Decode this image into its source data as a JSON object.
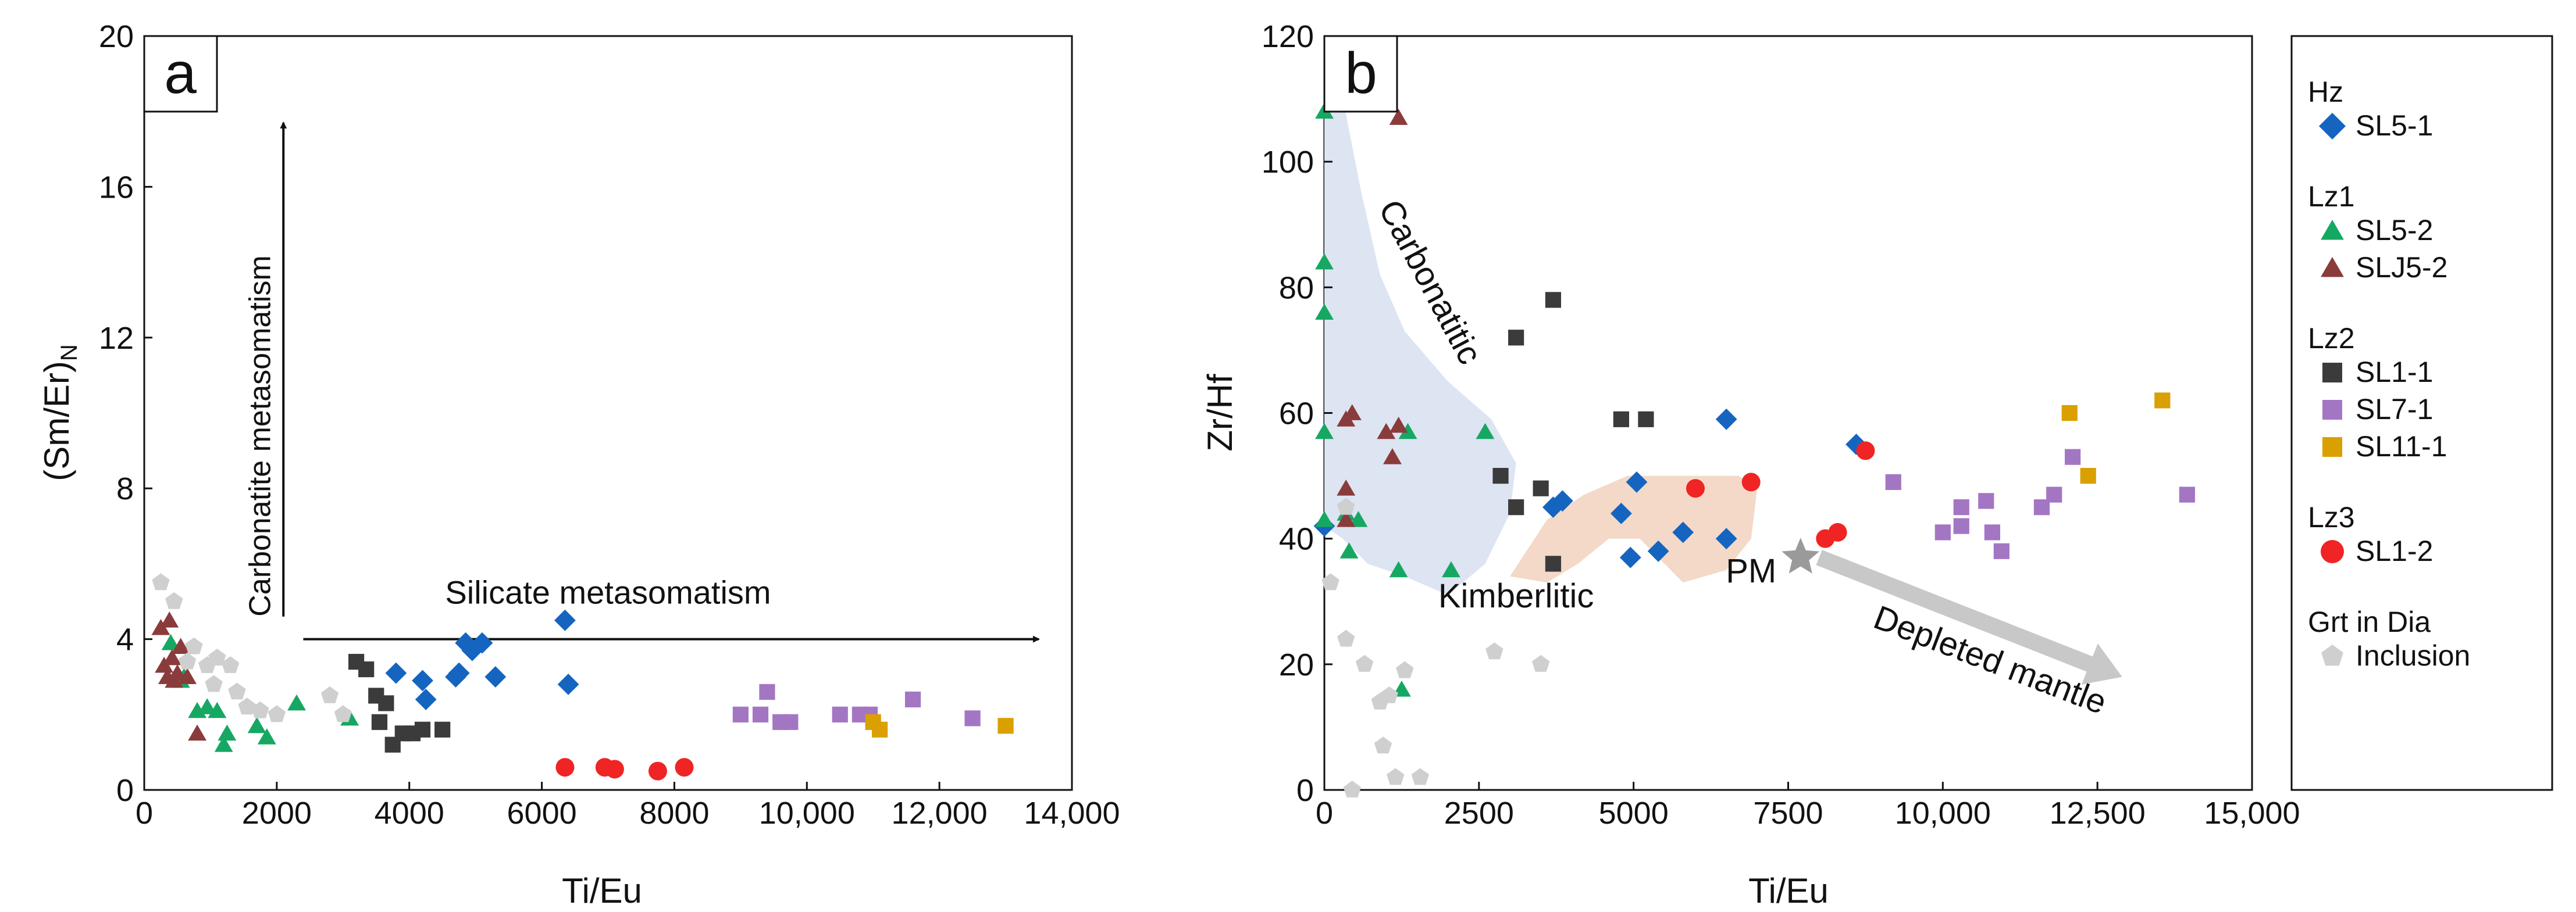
{
  "colors": {
    "SL5-1": "#1565c0",
    "SL5-2": "#16a862",
    "SLJ5-2": "#8a3b3b",
    "SL1-1": "#3b3b3b",
    "SL7-1": "#a376c4",
    "SL11-1": "#d9a000",
    "SL1-2": "#f02424",
    "Inclusion": "#cfcfcf",
    "carbonatitic_field": "#dde4f2",
    "kimberlitic_field": "#f4d9c8",
    "depleted_arrow": "#c8c8c8",
    "pm_star": "#9a9a9a"
  },
  "legend": {
    "groups": [
      {
        "label": "Hz",
        "entries": [
          {
            "label": "SL5-1",
            "marker": "diamond"
          }
        ]
      },
      {
        "label": "Lz1",
        "entries": [
          {
            "label": "SL5-2",
            "marker": "triangle"
          },
          {
            "label": "SLJ5-2",
            "marker": "triangle"
          }
        ]
      },
      {
        "label": "Lz2",
        "entries": [
          {
            "label": "SL1-1",
            "marker": "square"
          },
          {
            "label": "SL7-1",
            "marker": "square"
          },
          {
            "label": "SL11-1",
            "marker": "square"
          }
        ]
      },
      {
        "label": "Lz3",
        "entries": [
          {
            "label": "SL1-2",
            "marker": "circle"
          }
        ]
      },
      {
        "label": "Grt in Dia",
        "entries": [
          {
            "label": "Inclusion",
            "marker": "pentagon"
          }
        ]
      }
    ]
  },
  "chart_data": [
    {
      "panel": "a",
      "type": "scatter",
      "xlabel": "Ti/Eu",
      "ylabel": "(Sm/Er)",
      "ylabel_sub": "N",
      "xlim": [
        0,
        14000
      ],
      "ylim": [
        0,
        20
      ],
      "x_ticks": [
        {
          "v": 0,
          "label": "0"
        },
        {
          "v": 2000,
          "label": "2000"
        },
        {
          "v": 4000,
          "label": "4000"
        },
        {
          "v": 6000,
          "label": "6000"
        },
        {
          "v": 8000,
          "label": "8000"
        },
        {
          "v": 10000,
          "label": "10,000"
        },
        {
          "v": 12000,
          "label": "12,000"
        },
        {
          "v": 14000,
          "label": "14,000"
        }
      ],
      "y_ticks": [
        {
          "v": 0,
          "label": "0"
        },
        {
          "v": 4,
          "label": "4"
        },
        {
          "v": 8,
          "label": "8"
        },
        {
          "v": 12,
          "label": "12"
        },
        {
          "v": 16,
          "label": "16"
        },
        {
          "v": 20,
          "label": "20"
        }
      ],
      "annotations": [
        {
          "id": "carb",
          "text": "Carbonatite metasomatism",
          "x": 1900,
          "y": 4.6,
          "rotate": -90
        },
        {
          "id": "sil",
          "text": "Silicate metasomatism",
          "x": 7000,
          "y": 4.6
        }
      ],
      "arrows": [
        {
          "id": "carb-arrow",
          "from": [
            2100,
            4.6
          ],
          "to": [
            2100,
            17.7
          ]
        },
        {
          "id": "sil-arrow",
          "from": [
            2400,
            4.0
          ],
          "to": [
            13500,
            4.0
          ]
        }
      ],
      "series": [
        {
          "name": "SL5-1",
          "marker": "diamond",
          "points": [
            [
              3800,
              3.1
            ],
            [
              4200,
              2.9
            ],
            [
              4250,
              2.4
            ],
            [
              4700,
              3.0
            ],
            [
              4750,
              3.1
            ],
            [
              4850,
              3.9
            ],
            [
              4950,
              3.7
            ],
            [
              5100,
              3.9
            ],
            [
              5300,
              3.0
            ],
            [
              6350,
              4.5
            ],
            [
              6400,
              2.8
            ]
          ]
        },
        {
          "name": "SL5-2",
          "marker": "triangle",
          "points": [
            [
              400,
              3.9
            ],
            [
              550,
              2.9
            ],
            [
              800,
              2.1
            ],
            [
              950,
              2.2
            ],
            [
              1100,
              2.1
            ],
            [
              1200,
              1.2
            ],
            [
              1250,
              1.5
            ],
            [
              1700,
              1.7
            ],
            [
              1850,
              1.4
            ],
            [
              2300,
              2.3
            ],
            [
              3100,
              1.9
            ],
            [
              600,
              3.0
            ]
          ]
        },
        {
          "name": "SLJ5-2",
          "marker": "triangle",
          "points": [
            [
              250,
              4.3
            ],
            [
              300,
              3.3
            ],
            [
              350,
              3.0
            ],
            [
              380,
              4.5
            ],
            [
              420,
              3.5
            ],
            [
              450,
              2.9
            ],
            [
              500,
              3.1
            ],
            [
              550,
              3.8
            ],
            [
              650,
              3.0
            ],
            [
              800,
              1.5
            ]
          ]
        },
        {
          "name": "SL1-1",
          "marker": "square",
          "points": [
            [
              3200,
              3.4
            ],
            [
              3350,
              3.2
            ],
            [
              3550,
              1.8
            ],
            [
              3650,
              2.3
            ],
            [
              3750,
              1.2
            ],
            [
              3900,
              1.5
            ],
            [
              4050,
              1.5
            ],
            [
              4200,
              1.6
            ],
            [
              4500,
              1.6
            ],
            [
              3500,
              2.5
            ]
          ]
        },
        {
          "name": "SL7-1",
          "marker": "square",
          "points": [
            [
              9000,
              2.0
            ],
            [
              9300,
              2.0
            ],
            [
              9400,
              2.6
            ],
            [
              9600,
              1.8
            ],
            [
              9750,
              1.8
            ],
            [
              10500,
              2.0
            ],
            [
              10800,
              2.0
            ],
            [
              10950,
              2.0
            ],
            [
              11600,
              2.4
            ],
            [
              12500,
              1.9
            ]
          ]
        },
        {
          "name": "SL11-1",
          "marker": "square",
          "points": [
            [
              11000,
              1.8
            ],
            [
              11100,
              1.6
            ],
            [
              13000,
              1.7
            ]
          ]
        },
        {
          "name": "SL1-2",
          "marker": "circle",
          "points": [
            [
              6350,
              0.6
            ],
            [
              6950,
              0.6
            ],
            [
              7100,
              0.55
            ],
            [
              7750,
              0.5
            ],
            [
              8150,
              0.6
            ]
          ]
        },
        {
          "name": "Inclusion",
          "marker": "pentagon",
          "points": [
            [
              250,
              5.5
            ],
            [
              450,
              5.0
            ],
            [
              650,
              3.4
            ],
            [
              750,
              3.8
            ],
            [
              950,
              3.3
            ],
            [
              1100,
              3.5
            ],
            [
              1300,
              3.3
            ],
            [
              1400,
              2.6
            ],
            [
              1750,
              2.1
            ],
            [
              2000,
              2.0
            ],
            [
              2800,
              2.5
            ],
            [
              3000,
              2.0
            ],
            [
              1050,
              2.8
            ],
            [
              1550,
              2.2
            ]
          ]
        }
      ]
    },
    {
      "panel": "b",
      "type": "scatter",
      "xlabel": "Ti/Eu",
      "ylabel": "Zr/Hf",
      "xlim": [
        0,
        15000
      ],
      "ylim": [
        0,
        120
      ],
      "x_ticks": [
        {
          "v": 0,
          "label": "0"
        },
        {
          "v": 2500,
          "label": "2500"
        },
        {
          "v": 5000,
          "label": "5000"
        },
        {
          "v": 7500,
          "label": "7500"
        },
        {
          "v": 10000,
          "label": "10,000"
        },
        {
          "v": 12500,
          "label": "12,500"
        },
        {
          "v": 15000,
          "label": "15,000"
        }
      ],
      "y_ticks": [
        {
          "v": 0,
          "label": "0"
        },
        {
          "v": 20,
          "label": "20"
        },
        {
          "v": 40,
          "label": "40"
        },
        {
          "v": 60,
          "label": "60"
        },
        {
          "v": 80,
          "label": "80"
        },
        {
          "v": 100,
          "label": "100"
        },
        {
          "v": 120,
          "label": "120"
        }
      ],
      "fields": [
        {
          "id": "carbonatitic",
          "label": "Carbonatitic",
          "points": [
            [
              0,
              110
            ],
            [
              300,
              110
            ],
            [
              600,
              95
            ],
            [
              900,
              82
            ],
            [
              1300,
              73
            ],
            [
              2000,
              65
            ],
            [
              2700,
              59
            ],
            [
              3100,
              52
            ],
            [
              3000,
              44
            ],
            [
              2600,
              36
            ],
            [
              2000,
              31
            ],
            [
              1300,
              34
            ],
            [
              700,
              36
            ],
            [
              300,
              40
            ],
            [
              0,
              42
            ]
          ]
        },
        {
          "id": "kimberlitic",
          "label": "Kimberlitic",
          "points": [
            [
              3000,
              34
            ],
            [
              3600,
              43
            ],
            [
              4200,
              47
            ],
            [
              4900,
              50
            ],
            [
              5800,
              50
            ],
            [
              6700,
              50
            ],
            [
              7000,
              48
            ],
            [
              6900,
              40
            ],
            [
              6500,
              35
            ],
            [
              5800,
              33
            ],
            [
              5500,
              36
            ],
            [
              5100,
              40
            ],
            [
              4600,
              40
            ],
            [
              4100,
              36
            ],
            [
              3600,
              33
            ]
          ]
        }
      ],
      "annotations": [
        {
          "id": "carb-label",
          "text": "Carbonatitic",
          "x": 1550,
          "y": 80,
          "rotate": 62
        },
        {
          "id": "kimb-label",
          "text": "Kimberlitic",
          "x": 3100,
          "y": 27
        },
        {
          "id": "pm-label",
          "text": "PM",
          "x": 6900,
          "y": 31
        },
        {
          "id": "dep-label",
          "text": "Depleted mantle",
          "x": 10700,
          "y": 19,
          "rotate": 21
        }
      ],
      "pm_point": [
        7700,
        37
      ],
      "depleted_arrow": {
        "from": [
          8000,
          37
        ],
        "to": [
          12900,
          18
        ]
      },
      "series": [
        {
          "name": "SL5-1",
          "marker": "diamond",
          "points": [
            [
              0,
              42
            ],
            [
              3700,
              45
            ],
            [
              3850,
              46
            ],
            [
              4800,
              44
            ],
            [
              4950,
              37
            ],
            [
              5050,
              49
            ],
            [
              5400,
              38
            ],
            [
              5800,
              41
            ],
            [
              6500,
              40
            ],
            [
              6500,
              59
            ],
            [
              8600,
              55
            ]
          ]
        },
        {
          "name": "SL5-2",
          "marker": "triangle",
          "points": [
            [
              0,
              108
            ],
            [
              0,
              84
            ],
            [
              0,
              76
            ],
            [
              0,
              57
            ],
            [
              0,
              43
            ],
            [
              350,
              44
            ],
            [
              400,
              38
            ],
            [
              550,
              43
            ],
            [
              1200,
              35
            ],
            [
              1350,
              57
            ],
            [
              2050,
              35
            ],
            [
              2600,
              57
            ],
            [
              1250,
              16
            ]
          ]
        },
        {
          "name": "SLJ5-2",
          "marker": "triangle",
          "points": [
            [
              350,
              59
            ],
            [
              450,
              60
            ],
            [
              350,
              48
            ],
            [
              1000,
              57
            ],
            [
              1100,
              53
            ],
            [
              1200,
              58
            ],
            [
              1200,
              107
            ],
            [
              350,
              43
            ]
          ]
        },
        {
          "name": "SL1-1",
          "marker": "square",
          "points": [
            [
              2850,
              50
            ],
            [
              3100,
              45
            ],
            [
              3100,
              72
            ],
            [
              3500,
              48
            ],
            [
              3700,
              36
            ],
            [
              3700,
              78
            ],
            [
              4800,
              59
            ],
            [
              5200,
              59
            ]
          ]
        },
        {
          "name": "SL7-1",
          "marker": "square",
          "points": [
            [
              9200,
              49
            ],
            [
              10000,
              41
            ],
            [
              10300,
              42
            ],
            [
              10300,
              45
            ],
            [
              10700,
              46
            ],
            [
              10800,
              41
            ],
            [
              10950,
              38
            ],
            [
              11600,
              45
            ],
            [
              11800,
              47
            ],
            [
              12100,
              53
            ],
            [
              13950,
              47
            ]
          ]
        },
        {
          "name": "SL11-1",
          "marker": "square",
          "points": [
            [
              12050,
              60
            ],
            [
              12350,
              50
            ],
            [
              13550,
              62
            ]
          ]
        },
        {
          "name": "SL1-2",
          "marker": "circle",
          "points": [
            [
              6000,
              48
            ],
            [
              6900,
              49
            ],
            [
              8100,
              40
            ],
            [
              8300,
              41
            ],
            [
              8750,
              54
            ]
          ]
        },
        {
          "name": "Inclusion",
          "marker": "pentagon",
          "points": [
            [
              100,
              33
            ],
            [
              350,
              24
            ],
            [
              650,
              20
            ],
            [
              900,
              14
            ],
            [
              1050,
              15
            ],
            [
              1150,
              2
            ],
            [
              1300,
              19
            ],
            [
              1550,
              2
            ],
            [
              2750,
              22
            ],
            [
              3500,
              20
            ],
            [
              450,
              0
            ],
            [
              950,
              7
            ],
            [
              350,
              45
            ]
          ]
        }
      ]
    }
  ]
}
